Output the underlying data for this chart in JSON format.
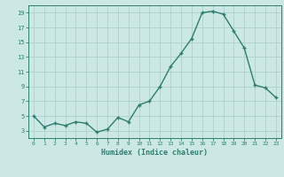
{
  "x": [
    0,
    1,
    2,
    3,
    4,
    5,
    6,
    7,
    8,
    9,
    10,
    11,
    12,
    13,
    14,
    15,
    16,
    17,
    18,
    19,
    20,
    21,
    22,
    23
  ],
  "y": [
    5.0,
    3.5,
    4.0,
    3.7,
    4.2,
    4.0,
    2.8,
    3.2,
    4.8,
    4.2,
    6.5,
    7.0,
    9.0,
    11.7,
    13.5,
    15.5,
    19.0,
    19.2,
    18.8,
    16.5,
    14.2,
    9.2,
    8.8,
    7.5
  ],
  "xlabel": "Humidex (Indice chaleur)",
  "ylabel": "",
  "line_color": "#2e7d6e",
  "marker_color": "#2e7d6e",
  "bg_color": "#cce8e4",
  "grid_color": "#aed0cc",
  "text_color": "#2e7d6e",
  "ylim": [
    2,
    20
  ],
  "xlim": [
    -0.5,
    23.5
  ],
  "yticks": [
    3,
    5,
    7,
    9,
    11,
    13,
    15,
    17,
    19
  ],
  "xticks": [
    0,
    1,
    2,
    3,
    4,
    5,
    6,
    7,
    8,
    9,
    10,
    11,
    12,
    13,
    14,
    15,
    16,
    17,
    18,
    19,
    20,
    21,
    22,
    23
  ]
}
